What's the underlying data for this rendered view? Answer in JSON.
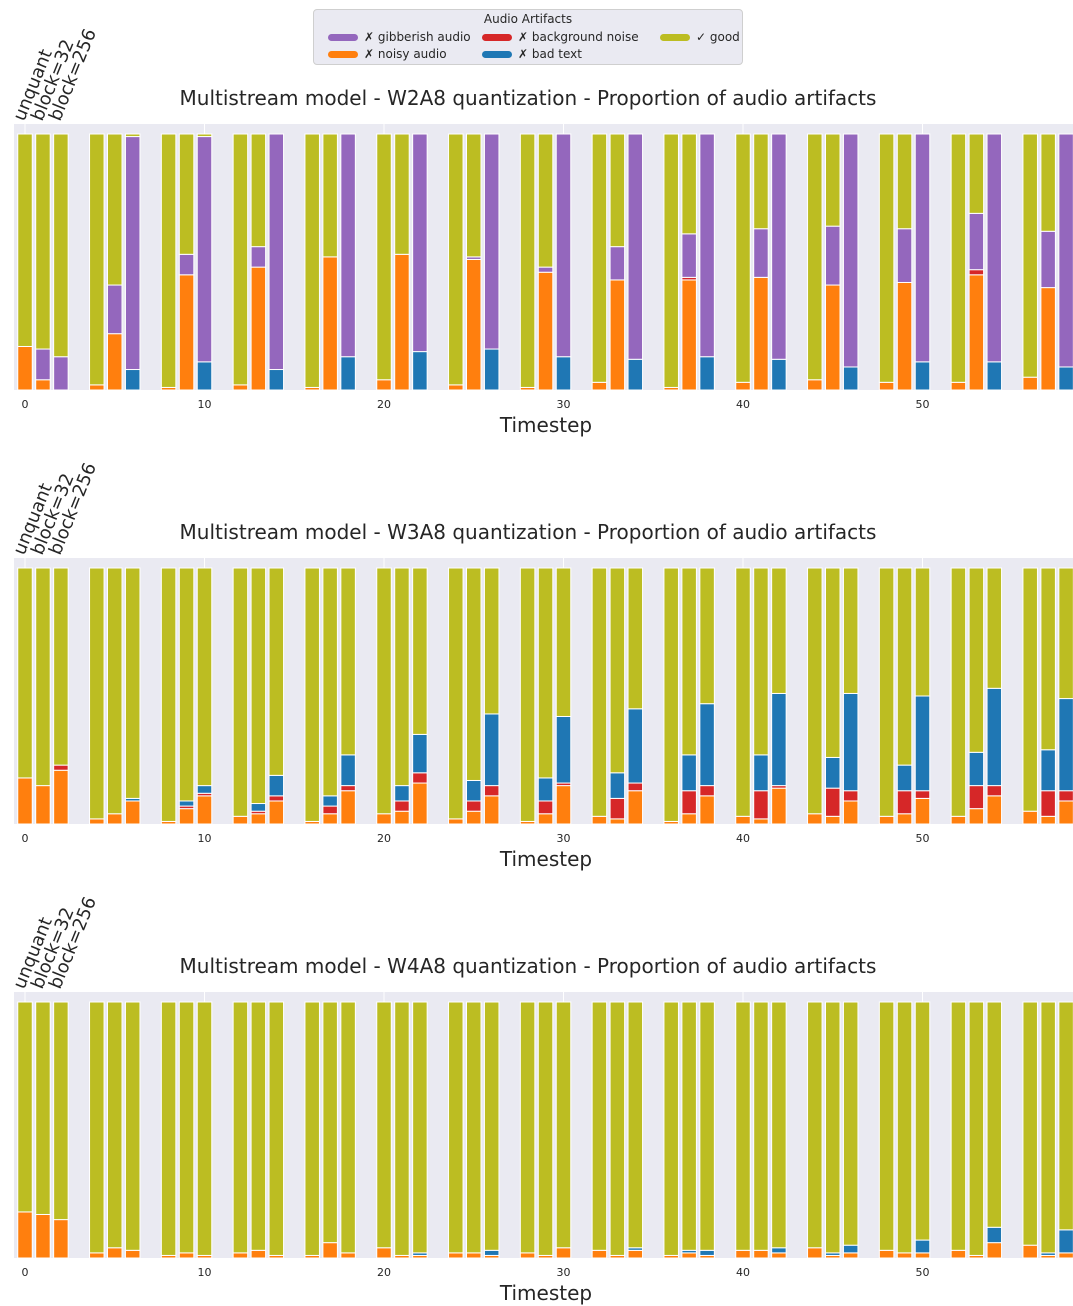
{
  "legend": {
    "title": "Audio Artifacts",
    "items": [
      {
        "key": "gibberish",
        "label": "✗ gibberish audio",
        "color": "#9467bd"
      },
      {
        "key": "noisy",
        "label": "✗ noisy audio",
        "color": "#ff7f0e"
      },
      {
        "key": "background",
        "label": "✗ background noise",
        "color": "#d62728"
      },
      {
        "key": "badtext",
        "label": "✗ bad text",
        "color": "#1f77b4"
      },
      {
        "key": "good",
        "label": "✓ good",
        "color": "#bcbd22"
      }
    ]
  },
  "chart_data": [
    {
      "type": "bar",
      "stacked": true,
      "title": "Multistream model - W2A8 quantization - Proportion of audio artifacts",
      "xlabel": "Timestep",
      "ylabel": "",
      "xticks": [
        0,
        10,
        20,
        30,
        40,
        50
      ],
      "ylim": [
        0,
        1
      ],
      "grid": true,
      "group_labels": [
        "unquant",
        "block=32",
        "block=256"
      ],
      "groups": [
        0,
        4,
        8,
        12,
        16,
        20,
        24,
        28,
        32,
        36,
        40,
        44,
        48,
        52,
        56
      ],
      "series_order": [
        "noisy",
        "background",
        "badtext",
        "gibberish",
        "good"
      ],
      "bars": [
        [
          [
            0.17,
            0,
            0,
            0,
            0.83
          ],
          [
            0.04,
            0,
            0,
            0.12,
            0.84
          ],
          [
            0,
            0,
            0,
            0.13,
            0.87
          ]
        ],
        [
          [
            0.02,
            0,
            0,
            0,
            0.98
          ],
          [
            0.22,
            0,
            0,
            0.19,
            0.59
          ],
          [
            0,
            0,
            0.08,
            0.91,
            0.01
          ]
        ],
        [
          [
            0.01,
            0,
            0,
            0,
            0.99
          ],
          [
            0.45,
            0,
            0,
            0.08,
            0.47
          ],
          [
            0,
            0,
            0.11,
            0.88,
            0.01
          ]
        ],
        [
          [
            0.02,
            0,
            0,
            0,
            0.98
          ],
          [
            0.48,
            0,
            0,
            0.08,
            0.44
          ],
          [
            0,
            0,
            0.08,
            0.92,
            0
          ]
        ],
        [
          [
            0.01,
            0,
            0,
            0,
            0.99
          ],
          [
            0.52,
            0,
            0,
            0,
            0.48
          ],
          [
            0,
            0,
            0.13,
            0.87,
            0
          ]
        ],
        [
          [
            0.04,
            0,
            0,
            0,
            0.96
          ],
          [
            0.53,
            0,
            0,
            0,
            0.47
          ],
          [
            0,
            0,
            0.15,
            0.85,
            0
          ]
        ],
        [
          [
            0.02,
            0,
            0,
            0,
            0.98
          ],
          [
            0.51,
            0,
            0,
            0.01,
            0.48
          ],
          [
            0,
            0,
            0.16,
            0.84,
            0
          ]
        ],
        [
          [
            0.01,
            0,
            0,
            0,
            0.99
          ],
          [
            0.46,
            0,
            0,
            0.02,
            0.52
          ],
          [
            0,
            0,
            0.13,
            0.87,
            0
          ]
        ],
        [
          [
            0.03,
            0,
            0,
            0,
            0.97
          ],
          [
            0.43,
            0,
            0,
            0.13,
            0.44
          ],
          [
            0,
            0,
            0.12,
            0.88,
            0
          ]
        ],
        [
          [
            0.01,
            0,
            0,
            0,
            0.99
          ],
          [
            0.43,
            0.01,
            0,
            0.17,
            0.39
          ],
          [
            0,
            0,
            0.13,
            0.87,
            0
          ]
        ],
        [
          [
            0.03,
            0,
            0,
            0,
            0.97
          ],
          [
            0.44,
            0,
            0,
            0.19,
            0.37
          ],
          [
            0,
            0,
            0.12,
            0.88,
            0
          ]
        ],
        [
          [
            0.04,
            0,
            0,
            0,
            0.96
          ],
          [
            0.41,
            0,
            0,
            0.23,
            0.36
          ],
          [
            0,
            0,
            0.09,
            0.91,
            0
          ]
        ],
        [
          [
            0.03,
            0,
            0,
            0,
            0.97
          ],
          [
            0.42,
            0,
            0,
            0.21,
            0.37
          ],
          [
            0,
            0,
            0.11,
            0.89,
            0
          ]
        ],
        [
          [
            0.03,
            0,
            0,
            0,
            0.97
          ],
          [
            0.45,
            0.02,
            0,
            0.22,
            0.31
          ],
          [
            0,
            0,
            0.11,
            0.89,
            0
          ]
        ],
        [
          [
            0.05,
            0,
            0,
            0,
            0.95
          ],
          [
            0.4,
            0,
            0,
            0.22,
            0.38
          ],
          [
            0,
            0,
            0.09,
            0.91,
            0
          ]
        ]
      ]
    },
    {
      "type": "bar",
      "stacked": true,
      "title": "Multistream model - W3A8 quantization - Proportion of audio artifacts",
      "xlabel": "Timestep",
      "ylabel": "",
      "xticks": [
        0,
        10,
        20,
        30,
        40,
        50
      ],
      "ylim": [
        0,
        1
      ],
      "grid": true,
      "group_labels": [
        "unquant",
        "block=32",
        "block=256"
      ],
      "groups": [
        0,
        4,
        8,
        12,
        16,
        20,
        24,
        28,
        32,
        36,
        40,
        44,
        48,
        52,
        56
      ],
      "series_order": [
        "noisy",
        "background",
        "badtext",
        "gibberish",
        "good"
      ],
      "bars": [
        [
          [
            0.18,
            0,
            0,
            0,
            0.82
          ],
          [
            0.15,
            0,
            0,
            0,
            0.85
          ],
          [
            0.21,
            0.02,
            0,
            0,
            0.77
          ]
        ],
        [
          [
            0.02,
            0,
            0,
            0,
            0.98
          ],
          [
            0.04,
            0,
            0,
            0,
            0.96
          ],
          [
            0.09,
            0,
            0.01,
            0,
            0.9
          ]
        ],
        [
          [
            0.01,
            0,
            0,
            0,
            0.99
          ],
          [
            0.06,
            0.01,
            0.02,
            0,
            0.91
          ],
          [
            0.11,
            0.01,
            0.03,
            0,
            0.85
          ]
        ],
        [
          [
            0.03,
            0,
            0,
            0,
            0.97
          ],
          [
            0.04,
            0.01,
            0.03,
            0,
            0.92
          ],
          [
            0.09,
            0.02,
            0.08,
            0,
            0.81
          ]
        ],
        [
          [
            0.01,
            0,
            0,
            0,
            0.99
          ],
          [
            0.04,
            0.03,
            0.04,
            0,
            0.89
          ],
          [
            0.13,
            0.02,
            0.12,
            0,
            0.73
          ]
        ],
        [
          [
            0.04,
            0,
            0,
            0,
            0.96
          ],
          [
            0.05,
            0.04,
            0.06,
            0,
            0.85
          ],
          [
            0.16,
            0.04,
            0.15,
            0,
            0.65
          ]
        ],
        [
          [
            0.02,
            0,
            0,
            0,
            0.98
          ],
          [
            0.05,
            0.04,
            0.08,
            0,
            0.83
          ],
          [
            0.11,
            0.04,
            0.28,
            0,
            0.57
          ]
        ],
        [
          [
            0.01,
            0,
            0,
            0,
            0.99
          ],
          [
            0.04,
            0.05,
            0.09,
            0,
            0.82
          ],
          [
            0.15,
            0.01,
            0.26,
            0,
            0.58
          ]
        ],
        [
          [
            0.03,
            0,
            0,
            0,
            0.97
          ],
          [
            0.02,
            0.08,
            0.1,
            0,
            0.8
          ],
          [
            0.13,
            0.03,
            0.29,
            0,
            0.55
          ]
        ],
        [
          [
            0.01,
            0,
            0,
            0,
            0.99
          ],
          [
            0.04,
            0.09,
            0.14,
            0,
            0.73
          ],
          [
            0.11,
            0.04,
            0.32,
            0,
            0.53
          ]
        ],
        [
          [
            0.03,
            0,
            0,
            0,
            0.97
          ],
          [
            0.02,
            0.11,
            0.14,
            0,
            0.73
          ],
          [
            0.14,
            0.01,
            0.36,
            0,
            0.49
          ]
        ],
        [
          [
            0.04,
            0,
            0,
            0,
            0.96
          ],
          [
            0.03,
            0.11,
            0.12,
            0,
            0.74
          ],
          [
            0.09,
            0.04,
            0.38,
            0,
            0.49
          ]
        ],
        [
          [
            0.03,
            0,
            0,
            0,
            0.97
          ],
          [
            0.04,
            0.09,
            0.1,
            0,
            0.77
          ],
          [
            0.1,
            0.03,
            0.37,
            0,
            0.5
          ]
        ],
        [
          [
            0.03,
            0,
            0,
            0,
            0.97
          ],
          [
            0.06,
            0.09,
            0.13,
            0,
            0.72
          ],
          [
            0.11,
            0.04,
            0.38,
            0,
            0.47
          ]
        ],
        [
          [
            0.05,
            0,
            0,
            0,
            0.95
          ],
          [
            0.03,
            0.1,
            0.16,
            0,
            0.71
          ],
          [
            0.09,
            0.04,
            0.36,
            0,
            0.51
          ]
        ]
      ]
    },
    {
      "type": "bar",
      "stacked": true,
      "title": "Multistream model - W4A8 quantization - Proportion of audio artifacts",
      "xlabel": "Timestep",
      "ylabel": "",
      "xticks": [
        0,
        10,
        20,
        30,
        40,
        50
      ],
      "ylim": [
        0,
        1
      ],
      "grid": true,
      "group_labels": [
        "unquant",
        "block=32",
        "block=256"
      ],
      "groups": [
        0,
        4,
        8,
        12,
        16,
        20,
        24,
        28,
        32,
        36,
        40,
        44,
        48,
        52,
        56
      ],
      "series_order": [
        "noisy",
        "background",
        "badtext",
        "gibberish",
        "good"
      ],
      "bars": [
        [
          [
            0.18,
            0,
            0,
            0,
            0.82
          ],
          [
            0.17,
            0,
            0,
            0,
            0.83
          ],
          [
            0.15,
            0,
            0,
            0,
            0.85
          ]
        ],
        [
          [
            0.02,
            0,
            0,
            0,
            0.98
          ],
          [
            0.04,
            0,
            0,
            0,
            0.96
          ],
          [
            0.03,
            0,
            0,
            0,
            0.97
          ]
        ],
        [
          [
            0.01,
            0,
            0,
            0,
            0.99
          ],
          [
            0.02,
            0,
            0,
            0,
            0.98
          ],
          [
            0.01,
            0,
            0,
            0,
            0.99
          ]
        ],
        [
          [
            0.02,
            0,
            0,
            0,
            0.98
          ],
          [
            0.03,
            0,
            0,
            0,
            0.97
          ],
          [
            0.01,
            0,
            0,
            0,
            0.99
          ]
        ],
        [
          [
            0.01,
            0,
            0,
            0,
            0.99
          ],
          [
            0.06,
            0,
            0,
            0,
            0.94
          ],
          [
            0.02,
            0,
            0,
            0,
            0.98
          ]
        ],
        [
          [
            0.04,
            0,
            0,
            0,
            0.96
          ],
          [
            0.01,
            0,
            0,
            0,
            0.99
          ],
          [
            0.01,
            0,
            0.01,
            0,
            0.98
          ]
        ],
        [
          [
            0.02,
            0,
            0,
            0,
            0.98
          ],
          [
            0.02,
            0,
            0,
            0,
            0.98
          ],
          [
            0.01,
            0,
            0.02,
            0,
            0.97
          ]
        ],
        [
          [
            0.02,
            0,
            0,
            0,
            0.98
          ],
          [
            0.01,
            0,
            0,
            0,
            0.99
          ],
          [
            0.04,
            0,
            0,
            0,
            0.96
          ]
        ],
        [
          [
            0.03,
            0,
            0,
            0,
            0.97
          ],
          [
            0.01,
            0,
            0,
            0,
            0.99
          ],
          [
            0.03,
            0,
            0.01,
            0,
            0.96
          ]
        ],
        [
          [
            0.01,
            0,
            0,
            0,
            0.99
          ],
          [
            0.02,
            0,
            0.01,
            0,
            0.97
          ],
          [
            0.01,
            0,
            0.02,
            0,
            0.97
          ]
        ],
        [
          [
            0.03,
            0,
            0,
            0,
            0.97
          ],
          [
            0.03,
            0,
            0,
            0,
            0.97
          ],
          [
            0.02,
            0,
            0.02,
            0,
            0.96
          ]
        ],
        [
          [
            0.04,
            0,
            0,
            0,
            0.96
          ],
          [
            0.01,
            0,
            0.01,
            0,
            0.98
          ],
          [
            0.02,
            0,
            0.03,
            0,
            0.95
          ]
        ],
        [
          [
            0.03,
            0,
            0,
            0,
            0.97
          ],
          [
            0.02,
            0,
            0,
            0,
            0.98
          ],
          [
            0.02,
            0,
            0.05,
            0,
            0.93
          ]
        ],
        [
          [
            0.03,
            0,
            0,
            0,
            0.97
          ],
          [
            0.01,
            0,
            0,
            0,
            0.99
          ],
          [
            0.06,
            0,
            0.06,
            0,
            0.88
          ]
        ],
        [
          [
            0.05,
            0,
            0,
            0,
            0.95
          ],
          [
            0.01,
            0,
            0.01,
            0,
            0.98
          ],
          [
            0.02,
            0,
            0.09,
            0,
            0.89
          ]
        ]
      ]
    }
  ]
}
